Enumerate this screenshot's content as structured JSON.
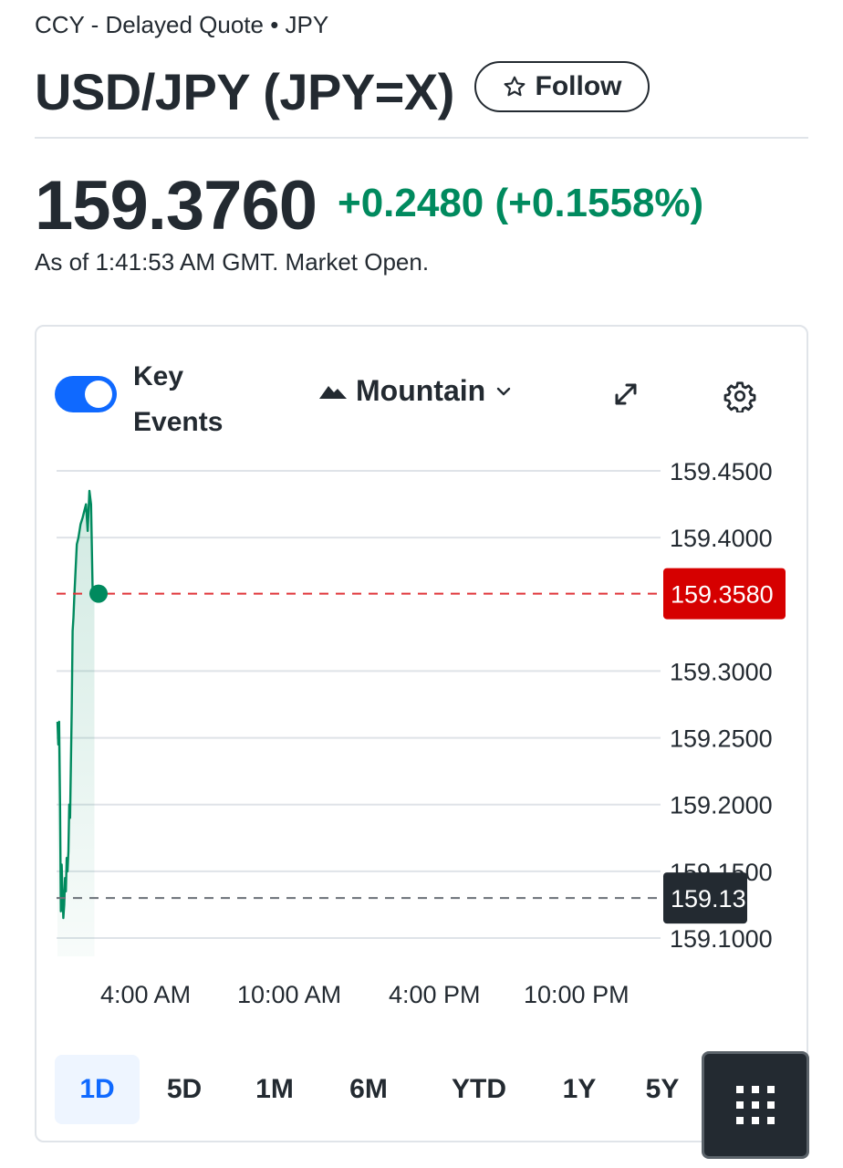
{
  "header": {
    "exchange_line": "CCY - Delayed Quote • JPY",
    "title": "USD/JPY (JPY=X)",
    "follow_label": "Follow"
  },
  "quote": {
    "price": "159.3760",
    "change": "+0.2480 (+0.1558%)",
    "as_of": "As of 1:41:53 AM GMT. Market Open."
  },
  "chart_controls": {
    "key_events_label": "Key Events",
    "key_events_on": true,
    "chart_type": "Mountain"
  },
  "chart_data": {
    "type": "area",
    "ylim": [
      159.09,
      159.46
    ],
    "y_ticks": [
      "159.4500",
      "159.4000",
      "159.3000",
      "159.2500",
      "159.2000",
      "159.1500",
      "159.1000"
    ],
    "y_tick_values": [
      159.45,
      159.4,
      159.3,
      159.25,
      159.2,
      159.15,
      159.1
    ],
    "x_ticks": [
      "4:00 AM",
      "10:00 AM",
      "4:00 PM",
      "10:00 PM"
    ],
    "reference_lines": [
      {
        "label": "159.3580",
        "value": 159.358,
        "color": "#d60000"
      },
      {
        "label": "159.13",
        "value": 159.13,
        "color": "#232a31"
      }
    ],
    "series": [
      {
        "color": "#008a5e",
        "points": [
          [
            0.0,
            159.262
          ],
          [
            0.02,
            159.245
          ],
          [
            0.04,
            159.262
          ],
          [
            0.06,
            159.2
          ],
          [
            0.08,
            159.12
          ],
          [
            0.1,
            159.155
          ],
          [
            0.12,
            159.135
          ],
          [
            0.14,
            159.115
          ],
          [
            0.16,
            159.125
          ],
          [
            0.18,
            159.145
          ],
          [
            0.2,
            159.135
          ],
          [
            0.22,
            159.16
          ],
          [
            0.24,
            159.15
          ],
          [
            0.26,
            159.165
          ],
          [
            0.28,
            159.2
          ],
          [
            0.3,
            159.19
          ],
          [
            0.32,
            159.23
          ],
          [
            0.34,
            159.27
          ],
          [
            0.36,
            159.33
          ],
          [
            0.38,
            159.34
          ],
          [
            0.4,
            159.355
          ],
          [
            0.43,
            159.375
          ],
          [
            0.46,
            159.395
          ],
          [
            0.5,
            159.4
          ],
          [
            0.55,
            159.41
          ],
          [
            0.6,
            159.415
          ],
          [
            0.64,
            159.42
          ],
          [
            0.68,
            159.425
          ],
          [
            0.72,
            159.405
          ],
          [
            0.76,
            159.435
          ],
          [
            0.8,
            159.425
          ],
          [
            0.84,
            159.358
          ],
          [
            0.88,
            159.358
          ]
        ]
      }
    ],
    "last_point_value": 159.358
  },
  "ranges": {
    "items": [
      "1D",
      "5D",
      "1M",
      "6M",
      "YTD",
      "1Y",
      "5Y"
    ],
    "active": "1D"
  },
  "icons": {
    "follow": "star-icon",
    "chart_type": "mountain-icon",
    "chart_type_dropdown": "chevron-down-icon",
    "expand": "expand-icon",
    "settings": "gear-icon",
    "more_ranges": "grid-icon"
  },
  "colors": {
    "up": "#008a5e",
    "accent": "#0f69ff",
    "previous_close": "#d60000"
  }
}
